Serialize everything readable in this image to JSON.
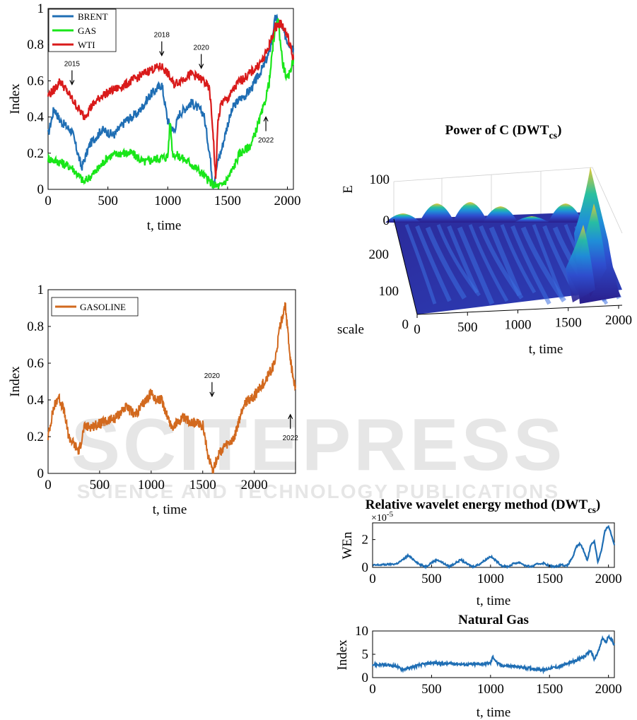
{
  "watermark": {
    "main": "SCITEPRESS",
    "sub": "SCIENCE AND TECHNOLOGY PUBLICATIONS"
  },
  "chart_data": [
    {
      "id": "oil-gas-index",
      "type": "line",
      "xlabel": "t, time",
      "ylabel": "Index",
      "xlim": [
        0,
        2050
      ],
      "ylim": [
        0,
        1
      ],
      "xticks": [
        "0",
        "500",
        "1000",
        "1500",
        "2000"
      ],
      "yticks": [
        "0",
        "0.2",
        "0.4",
        "0.6",
        "0.8",
        "1"
      ],
      "legend": "top-left",
      "grid": false,
      "series": [
        {
          "name": "BRENT",
          "color": "#1f6eb4",
          "x": [
            0,
            50,
            100,
            200,
            280,
            350,
            450,
            550,
            650,
            750,
            850,
            950,
            1000,
            1050,
            1100,
            1200,
            1300,
            1350,
            1380,
            1420,
            1450,
            1500,
            1550,
            1600,
            1650,
            1700,
            1750,
            1800,
            1850,
            1900,
            1950,
            2000,
            2050
          ],
          "y": [
            0.3,
            0.45,
            0.38,
            0.32,
            0.12,
            0.25,
            0.33,
            0.3,
            0.38,
            0.42,
            0.52,
            0.58,
            0.38,
            0.32,
            0.42,
            0.48,
            0.42,
            0.2,
            0.02,
            0.16,
            0.22,
            0.36,
            0.46,
            0.5,
            0.52,
            0.56,
            0.62,
            0.68,
            0.76,
            0.95,
            0.9,
            0.82,
            0.78
          ]
        },
        {
          "name": "GAS",
          "color": "#19e619",
          "x": [
            0,
            100,
            200,
            300,
            400,
            500,
            600,
            700,
            800,
            900,
            1000,
            1020,
            1040,
            1100,
            1200,
            1300,
            1350,
            1400,
            1450,
            1500,
            1550,
            1600,
            1650,
            1700,
            1750,
            1800,
            1850,
            1880,
            1920,
            1960,
            2000,
            2050
          ],
          "y": [
            0.17,
            0.15,
            0.12,
            0.04,
            0.1,
            0.18,
            0.2,
            0.2,
            0.15,
            0.17,
            0.18,
            0.38,
            0.2,
            0.18,
            0.14,
            0.08,
            0.04,
            0.02,
            0.02,
            0.06,
            0.12,
            0.2,
            0.22,
            0.25,
            0.35,
            0.45,
            0.6,
            0.8,
            0.95,
            0.7,
            0.6,
            0.72
          ]
        },
        {
          "name": "WTI",
          "color": "#d91a1a",
          "x": [
            0,
            50,
            100,
            200,
            300,
            350,
            450,
            550,
            650,
            750,
            850,
            950,
            1000,
            1050,
            1100,
            1200,
            1300,
            1350,
            1380,
            1400,
            1420,
            1450,
            1500,
            1550,
            1600,
            1650,
            1700,
            1750,
            1800,
            1850,
            1900,
            1950,
            2000,
            2050
          ],
          "y": [
            0.52,
            0.55,
            0.6,
            0.5,
            0.4,
            0.45,
            0.52,
            0.55,
            0.58,
            0.62,
            0.66,
            0.68,
            0.64,
            0.58,
            0.6,
            0.64,
            0.6,
            0.55,
            0.3,
            0.05,
            0.38,
            0.48,
            0.5,
            0.55,
            0.6,
            0.62,
            0.65,
            0.68,
            0.72,
            0.8,
            0.9,
            0.92,
            0.85,
            0.72
          ]
        }
      ],
      "annotations": [
        {
          "label": "2015",
          "x": 200,
          "y": 0.58,
          "direction": "down"
        },
        {
          "label": "2018",
          "x": 950,
          "y": 0.74,
          "direction": "down"
        },
        {
          "label": "2020",
          "x": 1280,
          "y": 0.67,
          "direction": "down"
        },
        {
          "label": "2022",
          "x": 1820,
          "y": 0.4,
          "direction": "up"
        }
      ]
    },
    {
      "id": "gasoline-index",
      "type": "line",
      "xlabel": "t, time",
      "ylabel": "Index",
      "xlim": [
        0,
        2400
      ],
      "ylim": [
        0,
        1
      ],
      "xticks": [
        "0",
        "500",
        "1000",
        "1500",
        "2000"
      ],
      "yticks": [
        "0",
        "0.2",
        "0.4",
        "0.6",
        "0.8",
        "1"
      ],
      "legend": "top-left",
      "grid": false,
      "series": [
        {
          "name": "GASOLINE",
          "color": "#d2691e",
          "x": [
            0,
            50,
            100,
            150,
            200,
            300,
            350,
            450,
            550,
            650,
            750,
            850,
            950,
            1000,
            1050,
            1100,
            1200,
            1300,
            1400,
            1500,
            1550,
            1600,
            1650,
            1700,
            1800,
            1900,
            2000,
            2100,
            2200,
            2250,
            2300,
            2350,
            2380,
            2400
          ],
          "y": [
            0.2,
            0.35,
            0.42,
            0.35,
            0.2,
            0.12,
            0.25,
            0.26,
            0.28,
            0.3,
            0.36,
            0.32,
            0.4,
            0.44,
            0.4,
            0.4,
            0.25,
            0.3,
            0.28,
            0.26,
            0.1,
            0.02,
            0.1,
            0.14,
            0.18,
            0.38,
            0.42,
            0.5,
            0.6,
            0.8,
            0.92,
            0.62,
            0.5,
            0.48
          ]
        }
      ],
      "annotations": [
        {
          "label": "2020",
          "x": 1590,
          "y": 0.42,
          "direction": "down"
        },
        {
          "label": "2022",
          "x": 2350,
          "y": 0.32,
          "direction": "up"
        }
      ]
    },
    {
      "id": "power-surface",
      "type": "surface",
      "title_main": "Power of C (DWT",
      "title_sub": "cs",
      "title_end": ")",
      "xlabel": "t, time",
      "ylabel": "scale",
      "zlabel": "E",
      "xticks": [
        "0",
        "500",
        "1000",
        "1500",
        "2000"
      ],
      "yticks": [
        "0",
        "100",
        "200"
      ],
      "zticks": [
        "0",
        "100"
      ]
    },
    {
      "id": "wavelet-energy",
      "type": "line",
      "title_main": "Relative wavelet energy method (DWT",
      "title_sub": "cs",
      "title_end": ")",
      "exponent_label": "×10",
      "exponent_power": "-5",
      "xlabel": "t, time",
      "ylabel": "WEn",
      "xlim": [
        0,
        2050
      ],
      "ylim": [
        0,
        3.2
      ],
      "xticks": [
        "0",
        "500",
        "1000",
        "1500",
        "2000"
      ],
      "yticks": [
        "0",
        "2"
      ],
      "series": [
        {
          "color": "#1f6eb4",
          "x": [
            0,
            100,
            200,
            250,
            300,
            350,
            400,
            450,
            500,
            550,
            600,
            650,
            700,
            750,
            800,
            850,
            900,
            950,
            1000,
            1050,
            1100,
            1150,
            1200,
            1250,
            1300,
            1350,
            1400,
            1450,
            1500,
            1550,
            1600,
            1650,
            1700,
            1730,
            1760,
            1790,
            1820,
            1850,
            1880,
            1910,
            1940,
            1970,
            2000,
            2030,
            2050
          ],
          "y": [
            0.15,
            0.2,
            0.25,
            0.5,
            0.85,
            0.55,
            0.2,
            0.05,
            0.35,
            0.55,
            0.3,
            0.05,
            0.3,
            0.55,
            0.25,
            0.05,
            0.2,
            0.5,
            0.8,
            0.45,
            0.1,
            0.05,
            0.3,
            0.35,
            0.1,
            0.05,
            0.25,
            0.3,
            0.1,
            0.05,
            0.2,
            0.1,
            0.8,
            1.5,
            1.7,
            1.2,
            0.5,
            1.6,
            1.9,
            0.4,
            1.2,
            2.6,
            3.0,
            2.2,
            1.6
          ]
        }
      ]
    },
    {
      "id": "natural-gas",
      "type": "line",
      "title": "Natural Gas",
      "xlabel": "t, time",
      "ylabel": "Index",
      "xlim": [
        0,
        2050
      ],
      "ylim": [
        0,
        10
      ],
      "xticks": [
        "0",
        "500",
        "1000",
        "1500",
        "2000"
      ],
      "yticks": [
        "0",
        "5",
        "10"
      ],
      "series": [
        {
          "color": "#1f6eb4",
          "x": [
            0,
            100,
            200,
            250,
            300,
            400,
            500,
            600,
            700,
            800,
            900,
            1000,
            1020,
            1060,
            1100,
            1200,
            1300,
            1400,
            1450,
            1500,
            1550,
            1600,
            1650,
            1700,
            1750,
            1800,
            1850,
            1880,
            1920,
            1950,
            1980,
            2000,
            2030,
            2050
          ],
          "y": [
            2.8,
            2.7,
            2.5,
            1.7,
            2.0,
            2.7,
            3.2,
            3.0,
            3.0,
            2.8,
            2.9,
            3.1,
            4.5,
            3.0,
            2.6,
            2.4,
            2.1,
            1.8,
            1.6,
            2.0,
            2.2,
            2.5,
            3.0,
            3.4,
            4.0,
            4.6,
            5.8,
            3.8,
            6.0,
            8.5,
            7.5,
            9.0,
            8.0,
            7.0
          ]
        }
      ]
    }
  ]
}
